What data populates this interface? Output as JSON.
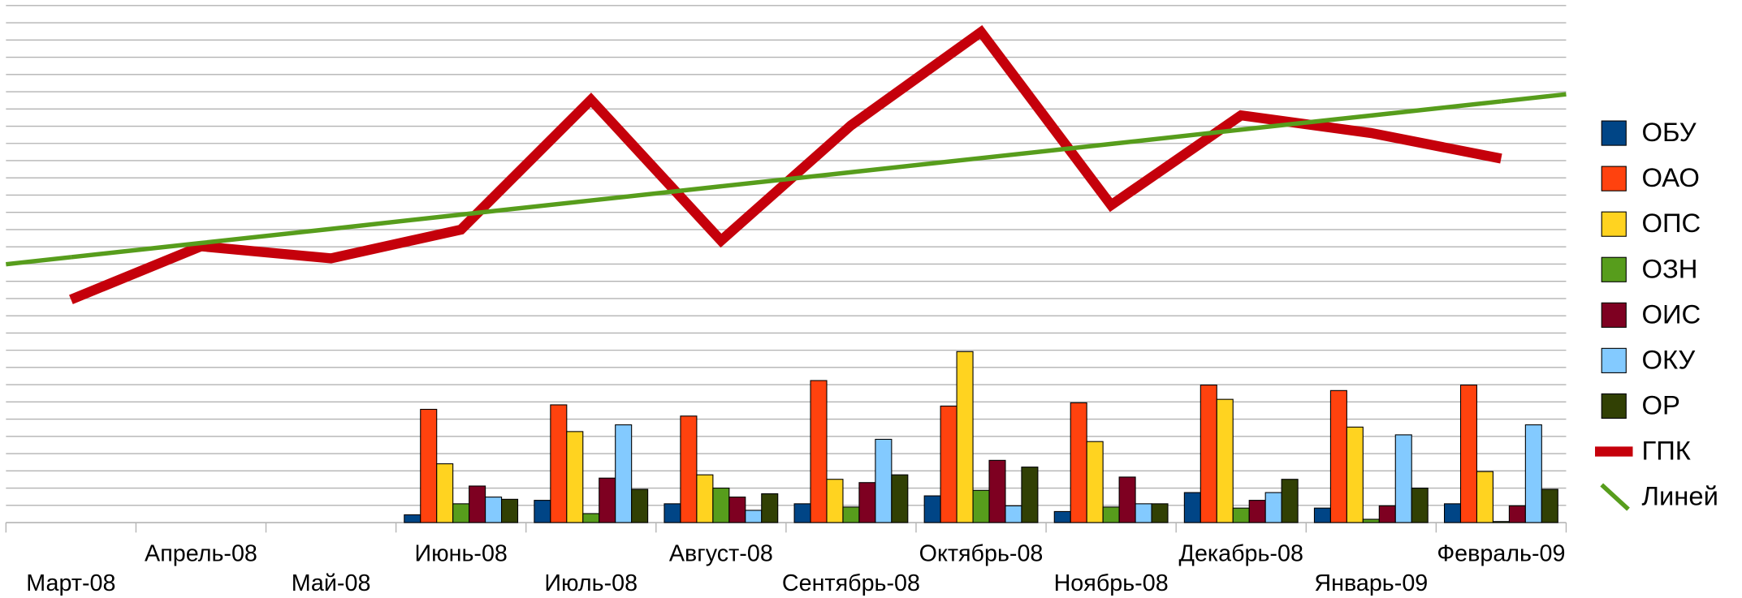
{
  "chart_data": {
    "type": "bar",
    "categories": [
      "Март-08",
      "Апрель-08",
      "Май-08",
      "Июнь-08",
      "Июль-08",
      "Август-08",
      "Сентябрь-08",
      "Октябрь-08",
      "Ноябрь-08",
      "Декабрь-08",
      "Январь-09",
      "Февраль-09"
    ],
    "series": [
      {
        "name": "ОБУ",
        "color": "#004586",
        "values": [
          null,
          null,
          null,
          0.45,
          1.29,
          1.09,
          1.09,
          1.55,
          0.64,
          1.74,
          0.84,
          1.09
        ]
      },
      {
        "name": "ОАО",
        "color": "#ff420e",
        "values": [
          null,
          null,
          null,
          6.57,
          6.83,
          6.18,
          8.24,
          6.76,
          6.95,
          7.98,
          7.66,
          7.98
        ]
      },
      {
        "name": "ОПС",
        "color": "#ffd320",
        "values": [
          null,
          null,
          null,
          3.41,
          5.28,
          2.77,
          2.51,
          9.92,
          4.7,
          7.15,
          5.54,
          2.96
        ]
      },
      {
        "name": "ОЗН",
        "color": "#579d1c",
        "values": [
          null,
          null,
          null,
          1.09,
          0.52,
          2.0,
          0.9,
          1.87,
          0.9,
          0.84,
          0.19,
          0.06
        ]
      },
      {
        "name": "ОИС",
        "color": "#7e0021",
        "values": [
          null,
          null,
          null,
          2.12,
          2.58,
          1.48,
          2.32,
          3.61,
          2.64,
          1.29,
          0.97,
          0.97
        ]
      },
      {
        "name": "ОКУ",
        "color": "#83caff",
        "values": [
          null,
          null,
          null,
          1.48,
          5.67,
          0.71,
          4.83,
          0.97,
          1.09,
          1.74,
          5.09,
          5.67
        ]
      },
      {
        "name": "ОР",
        "color": "#314004",
        "values": [
          null,
          null,
          null,
          1.35,
          1.93,
          1.67,
          2.77,
          3.22,
          1.09,
          2.51,
          2.0,
          1.93
        ]
      },
      {
        "name": "ГПК",
        "color": "#c5000b",
        "type": "line",
        "values": [
          12.94,
          16.03,
          15.33,
          17.0,
          24.53,
          16.36,
          23.05,
          28.46,
          18.42,
          23.63,
          22.6,
          21.12
        ]
      },
      {
        "name": "Линей",
        "color": "#579d1c",
        "type": "trend",
        "values": [
          15.4,
          16.22,
          17.04,
          17.87,
          18.69,
          19.51,
          20.33,
          21.15,
          21.97,
          22.8,
          23.62,
          24.44
        ]
      }
    ],
    "ylim": [
      0,
      30
    ],
    "yticks": [
      0,
      1,
      2,
      3,
      4,
      5,
      6,
      7,
      8,
      9,
      10,
      11,
      12,
      13,
      14,
      15,
      16,
      17,
      18,
      19,
      20,
      21,
      22,
      23,
      24,
      25,
      26,
      27,
      28,
      29,
      30
    ],
    "grid": true,
    "legend": "right"
  }
}
